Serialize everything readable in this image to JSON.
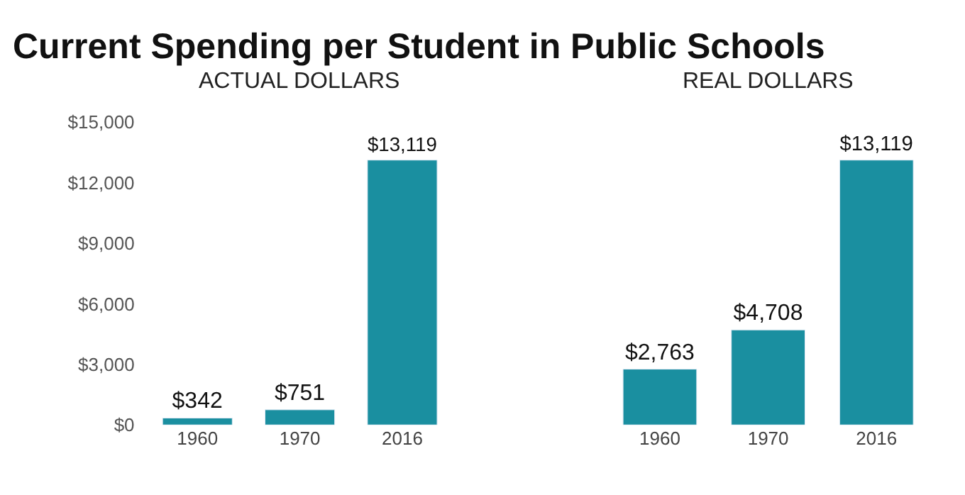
{
  "chart_data": [
    {
      "type": "bar",
      "title": "Current Spending per Student in Public Schools",
      "subtitle": "ACTUAL DOLLARS",
      "categories": [
        "1960",
        "1970",
        "2016"
      ],
      "values": [
        342,
        751,
        13119
      ],
      "color": "#1a8fa0",
      "value_labels": [
        "$342",
        "$751",
        "$13,119"
      ],
      "ylim": [
        0,
        15000
      ],
      "yticks": [
        {
          "value": 0,
          "label": "$0"
        },
        {
          "value": 3000,
          "label": "$3,000"
        },
        {
          "value": 6000,
          "label": "$6,000"
        },
        {
          "value": 9000,
          "label": "$9,000"
        },
        {
          "value": 12000,
          "label": "$12,000"
        },
        {
          "value": 15000,
          "label": "$15,000"
        }
      ]
    },
    {
      "type": "bar",
      "subtitle": "REAL DOLLARS",
      "categories": [
        "1960",
        "1970",
        "2016"
      ],
      "values": [
        2763,
        4708,
        13119
      ],
      "color": "#1a8fa0",
      "value_labels": [
        "$2,763",
        "$4,708",
        "$13,119"
      ],
      "ylim": [
        0,
        15000
      ],
      "tick_labels": "x"
    }
  ]
}
